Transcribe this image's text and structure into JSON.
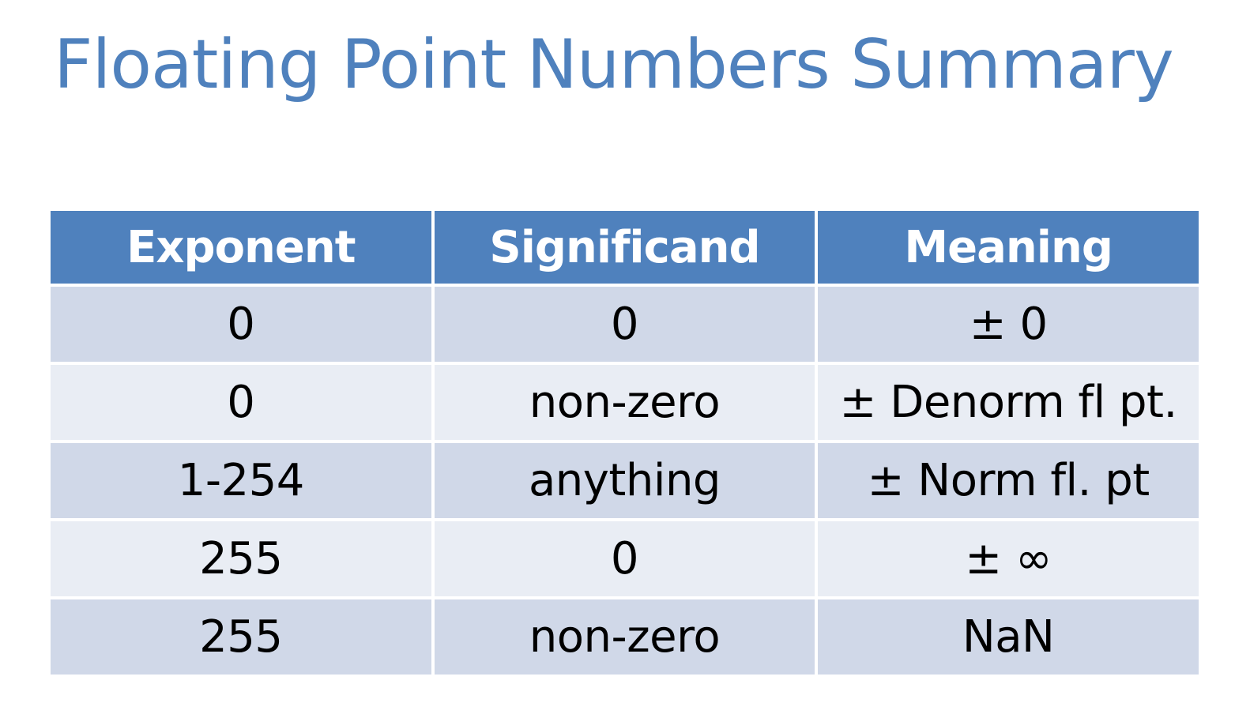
{
  "title": "Floating Point Numbers Summary",
  "table": {
    "headers": [
      "Exponent",
      "Significand",
      "Meaning"
    ],
    "rows": [
      [
        "0",
        "0",
        "± 0"
      ],
      [
        "0",
        "non-zero",
        "± Denorm fl pt."
      ],
      [
        "1-254",
        "anything",
        "± Norm fl. pt"
      ],
      [
        "255",
        "0",
        "± ∞"
      ],
      [
        "255",
        "non-zero",
        "NaN"
      ]
    ]
  },
  "colors": {
    "title": "#4f81bd",
    "header_bg": "#4f81bd",
    "header_text": "#ffffff",
    "row_band_dark": "#d0d8e8",
    "row_band_light": "#e9edf4"
  }
}
